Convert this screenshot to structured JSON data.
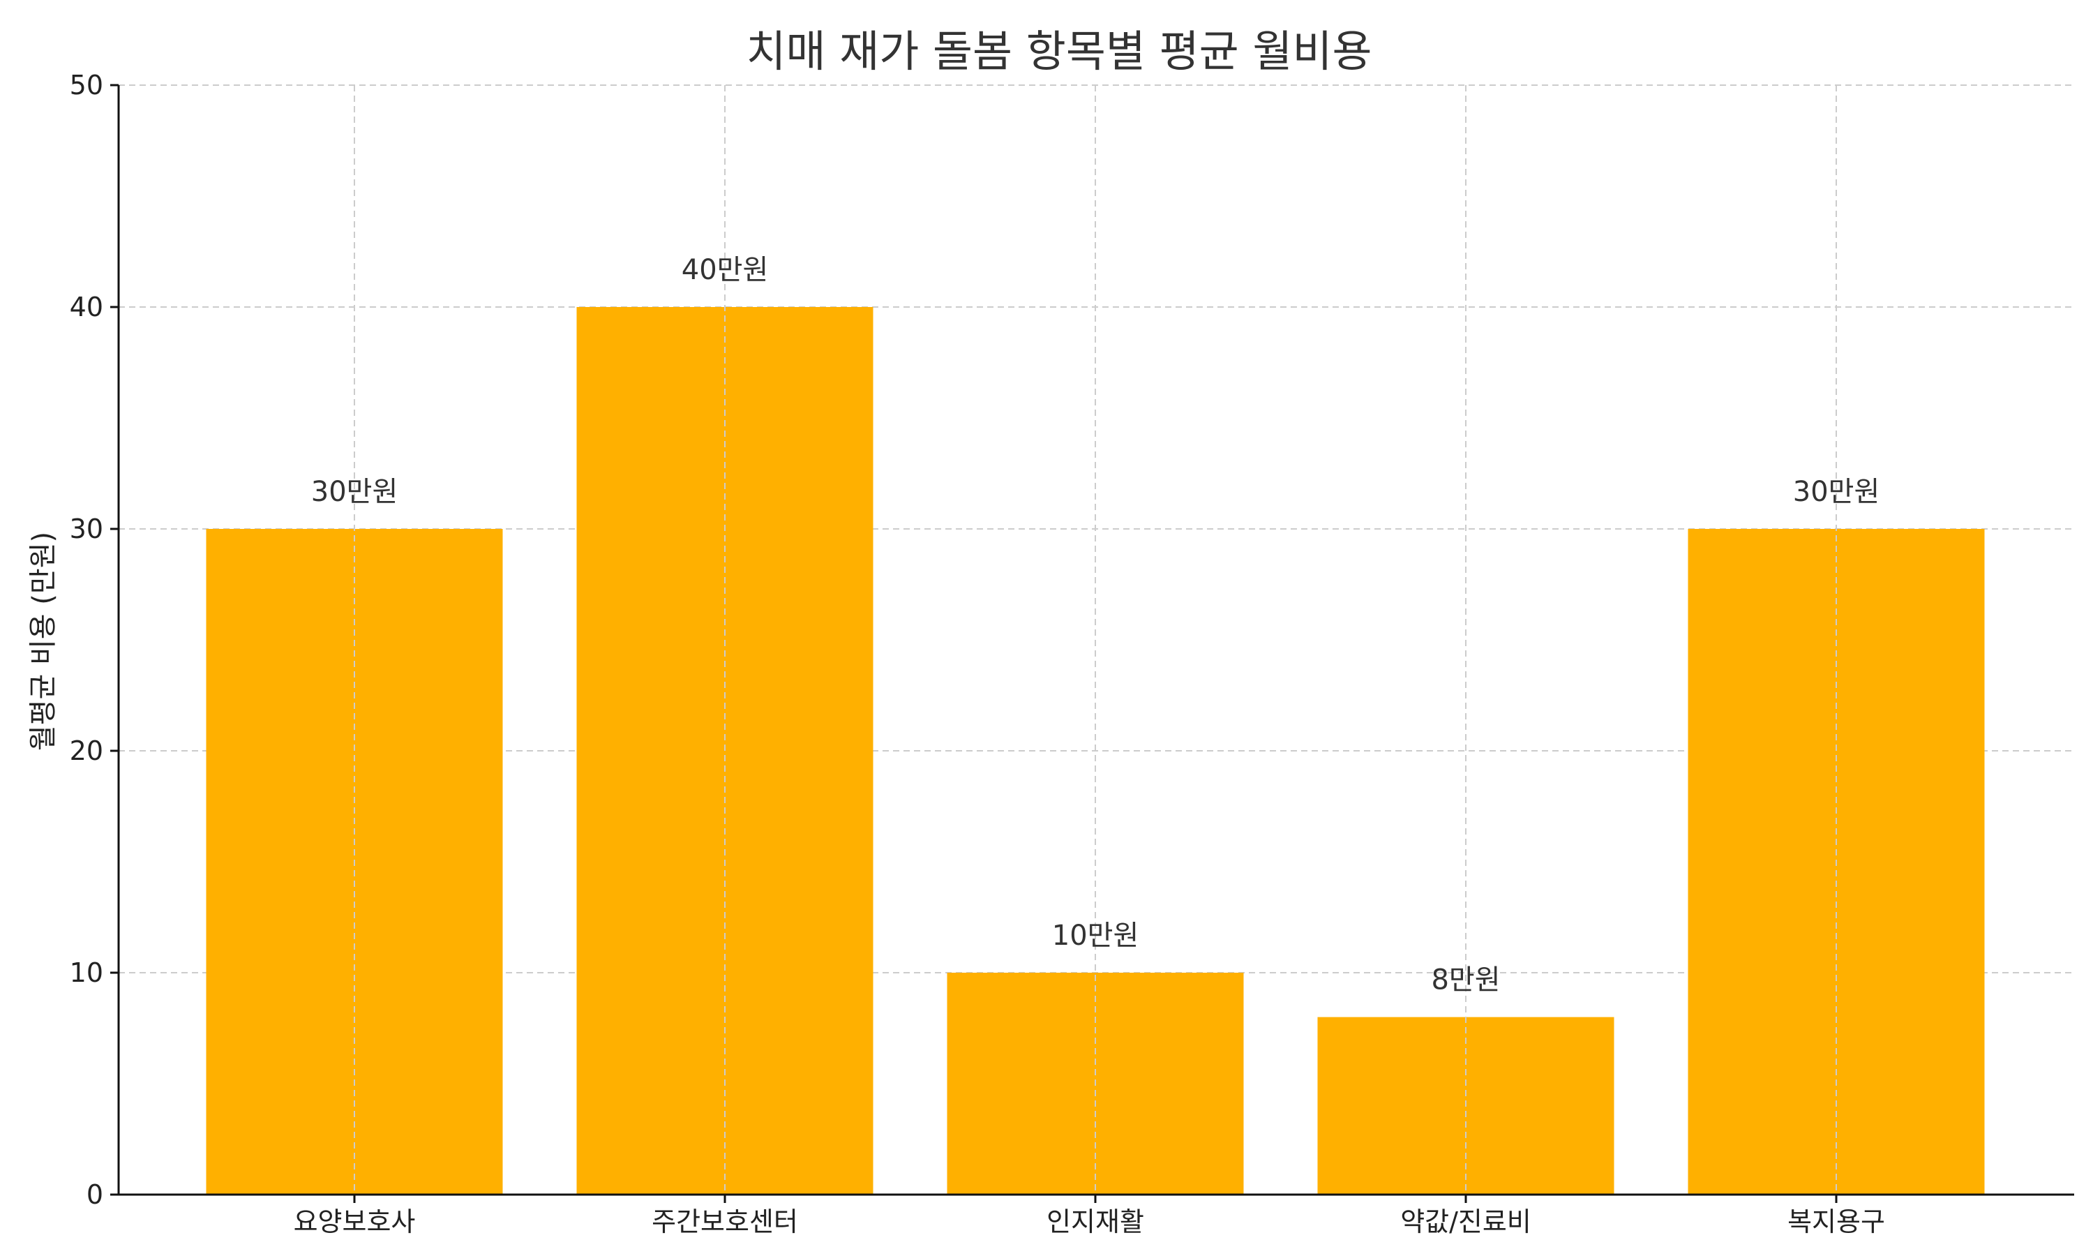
{
  "chart_data": {
    "type": "bar",
    "title": "치매 재가 돌봄 항목별 평균 월비용",
    "xlabel": "",
    "ylabel": "월평균 비용 (만원)",
    "categories": [
      "요양보호사",
      "주간보호센터",
      "인지재활",
      "약값/진료비",
      "복지용구"
    ],
    "values": [
      30,
      40,
      10,
      8,
      30
    ],
    "value_labels": [
      "30만원",
      "40만원",
      "10만원",
      "8만원",
      "30만원"
    ],
    "ylim": [
      0,
      50
    ],
    "yticks": [
      "0",
      "10",
      "20",
      "30",
      "40",
      "50"
    ],
    "grid": true,
    "bar_color": "#FFB000"
  }
}
